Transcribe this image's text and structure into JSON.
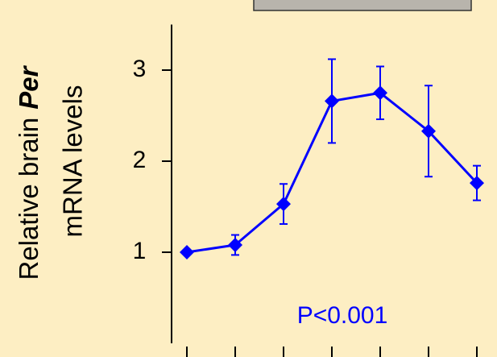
{
  "chart_data": {
    "type": "line",
    "ylabel_line1": "Relative brain",
    "ylabel_emphasis": "Per",
    "ylabel_line2": "mRNA levels",
    "annotation": "P<0.001",
    "categories": [
      null,
      null,
      null,
      null,
      null,
      null,
      null
    ],
    "values": [
      1.0,
      1.08,
      1.53,
      2.66,
      2.75,
      2.33,
      1.76
    ],
    "errors": [
      0,
      0.11,
      0.22,
      0.46,
      0.29,
      0.5,
      0.19
    ],
    "color": "#0000ff",
    "ylim": [
      0,
      3.5
    ],
    "yticks": [
      1,
      2,
      3
    ]
  }
}
